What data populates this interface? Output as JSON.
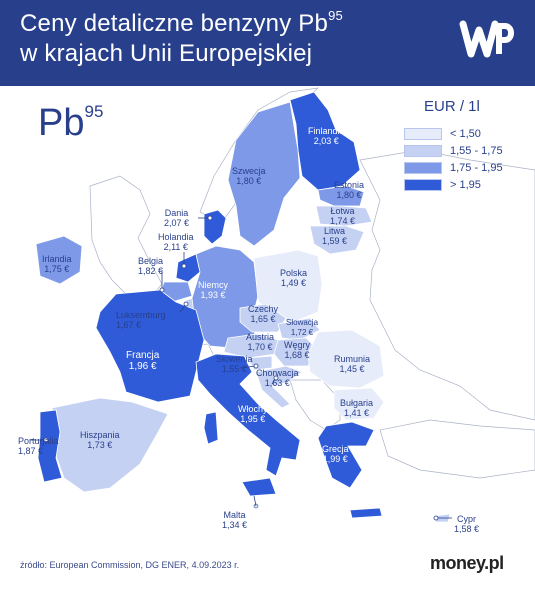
{
  "header": {
    "title_line1": "Ceny detaliczne benzyny Pb",
    "title_line1_sup": "95",
    "title_line2": "w krajach Unii Europejskiej",
    "background_color": "#283f8c"
  },
  "logo": {
    "icon": "wp-logo-icon"
  },
  "map": {
    "fuel_label": "Pb",
    "fuel_label_sup": "95",
    "legend": {
      "title": "EUR / 1l",
      "items": [
        {
          "label": "< 1,50",
          "color": "#e6ecfa"
        },
        {
          "label": "1,55 - 1,75",
          "color": "#c4d1f3"
        },
        {
          "label": "1,75 - 1,95",
          "color": "#7d99e8"
        },
        {
          "label": "> 1,95",
          "color": "#2f5bd8"
        }
      ]
    },
    "countries": [
      {
        "name": "Finlandia",
        "value": "2,03 €"
      },
      {
        "name": "Szwecja",
        "value": "1,80 €"
      },
      {
        "name": "Estonia",
        "value": "1,80 €"
      },
      {
        "name": "Łotwa",
        "value": "1,74 €"
      },
      {
        "name": "Litwa",
        "value": "1,59 €"
      },
      {
        "name": "Dania",
        "value": "2,07 €"
      },
      {
        "name": "Holandia",
        "value": "2,11 €"
      },
      {
        "name": "Irlandia",
        "value": "1,75 €"
      },
      {
        "name": "Belgia",
        "value": "1,82 €"
      },
      {
        "name": "Niemcy",
        "value": "1,93 €"
      },
      {
        "name": "Polska",
        "value": "1,49 €"
      },
      {
        "name": "Luksemburg",
        "value": "1,67 €"
      },
      {
        "name": "Czechy",
        "value": "1,65 €"
      },
      {
        "name": "Słowacja",
        "value": "1,72 €"
      },
      {
        "name": "Austria",
        "value": "1,70 €"
      },
      {
        "name": "Węgry",
        "value": "1,68 €"
      },
      {
        "name": "Francja",
        "value": "1,96 €"
      },
      {
        "name": "Słowenia",
        "value": "1,55 €"
      },
      {
        "name": "Chorwacja",
        "value": "1,63 €"
      },
      {
        "name": "Rumunia",
        "value": "1,45 €"
      },
      {
        "name": "Bułgaria",
        "value": "1,41 €"
      },
      {
        "name": "Włochy",
        "value": "1,95 €"
      },
      {
        "name": "Portugalia",
        "value": "1,87 €"
      },
      {
        "name": "Hiszpania",
        "value": "1,73 €"
      },
      {
        "name": "Grecja",
        "value": "1,99 €"
      },
      {
        "name": "Malta",
        "value": "1,34 €"
      },
      {
        "name": "Cypr",
        "value": "1,58 €"
      }
    ]
  },
  "footer": {
    "source": "źródło: European Commission, DG ENER, 4.09.2023 r.",
    "brand": "money.pl"
  }
}
